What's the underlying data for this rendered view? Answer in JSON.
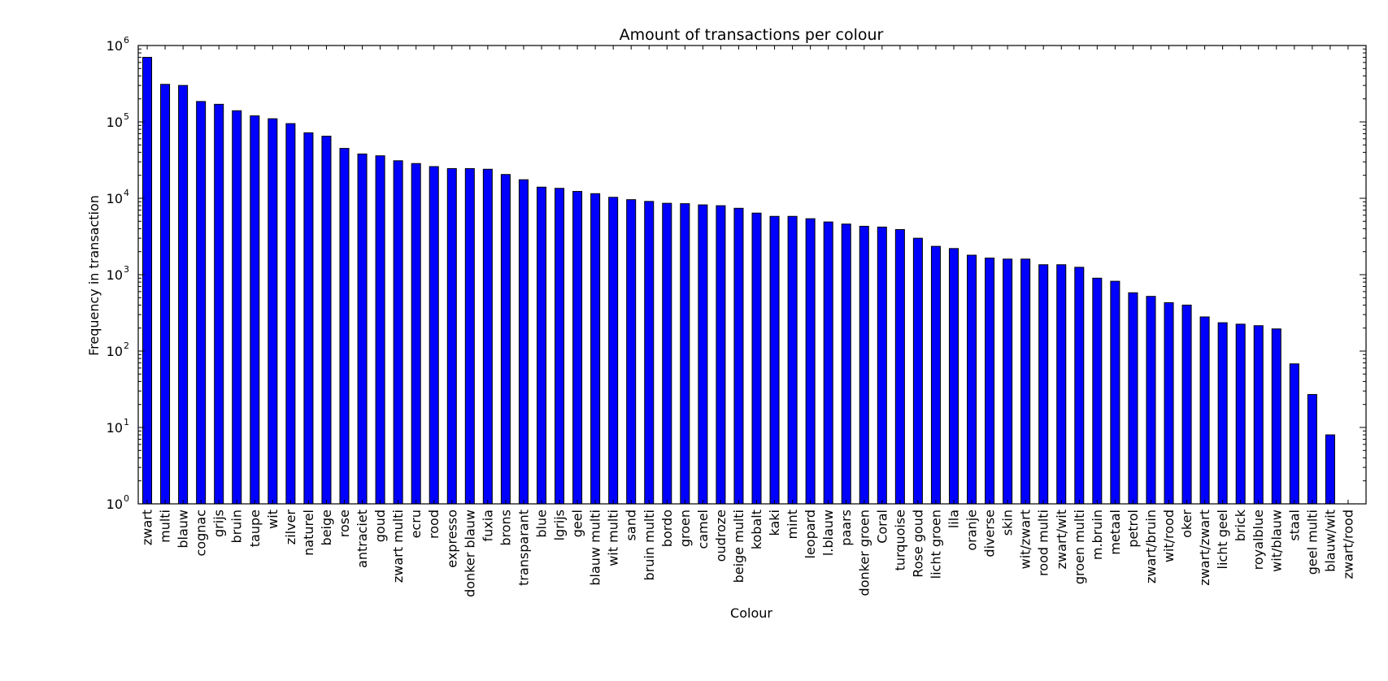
{
  "chart_data": {
    "type": "bar",
    "title": "Amount of transactions per colour",
    "xlabel": "Colour",
    "ylabel": "Frequency in transaction",
    "yscale": "log",
    "ylim": [
      1,
      1000000
    ],
    "y_ticks": [
      {
        "base": "10",
        "exp": "0"
      },
      {
        "base": "10",
        "exp": "1"
      },
      {
        "base": "10",
        "exp": "2"
      },
      {
        "base": "10",
        "exp": "3"
      },
      {
        "base": "10",
        "exp": "4"
      },
      {
        "base": "10",
        "exp": "5"
      },
      {
        "base": "10",
        "exp": "6"
      }
    ],
    "bar_color": "#0000ff",
    "grid": false,
    "categories": [
      "zwart",
      "multi",
      "blauw",
      "cognac",
      "grijs",
      "bruin",
      "taupe",
      "wit",
      "zilver",
      "naturel",
      "beige",
      "rose",
      "antraciet",
      "goud",
      "zwart multi",
      "ecru",
      "rood",
      "expresso",
      "donker blauw",
      "fuxia",
      "brons",
      "transparant",
      "blue",
      "lgrijs",
      "geel",
      "blauw multi",
      "wit multi",
      "sand",
      "bruin multi",
      "bordo",
      "groen",
      "camel",
      "oudroze",
      "beige multi",
      "kobalt",
      "kaki",
      "mint",
      "leopard",
      "l.blauw",
      "paars",
      "donker groen",
      "Coral",
      "turquoise",
      "Rose goud",
      "licht groen",
      "lila",
      "oranje",
      "diverse",
      "skin",
      "wit/zwart",
      "rood multi",
      "zwart/wit",
      "groen multi",
      "m.bruin",
      "metaal",
      "petrol",
      "zwart/bruin",
      "wit/rood",
      "oker",
      "zwart/zwart",
      "licht geel",
      "brick",
      "royalblue",
      "wit/blauw",
      "staal",
      "geel multi",
      "blauw/wit",
      "zwart/rood"
    ],
    "values": [
      700000,
      310000,
      300000,
      185000,
      170000,
      140000,
      120000,
      110000,
      95000,
      72000,
      65000,
      45000,
      38000,
      36000,
      31000,
      28500,
      26000,
      24500,
      24500,
      24000,
      20500,
      17500,
      14000,
      13500,
      12300,
      11500,
      10300,
      9600,
      9100,
      8600,
      8500,
      8200,
      8000,
      7400,
      6400,
      5800,
      5800,
      5400,
      4900,
      4600,
      4300,
      4200,
      3900,
      3000,
      2350,
      2200,
      1800,
      1650,
      1600,
      1600,
      1350,
      1350,
      1250,
      900,
      820,
      580,
      520,
      430,
      400,
      280,
      235,
      225,
      215,
      195,
      68,
      27,
      8,
      1
    ]
  }
}
